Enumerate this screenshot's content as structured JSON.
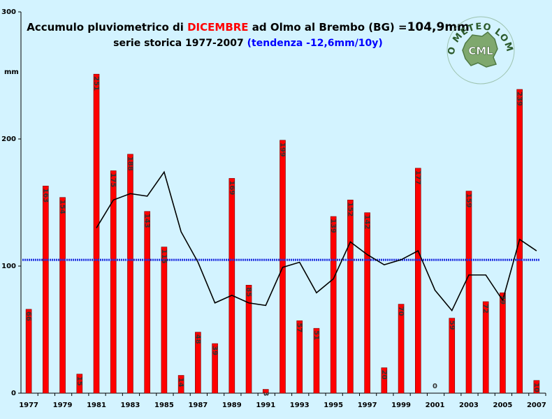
{
  "title": {
    "prefix": "Accumulo pluviometrico di ",
    "month": "DICEMBRE",
    "suffix": " ad Olmo al Brembo (BG) =",
    "total": "104,9mm"
  },
  "subtitle": {
    "main": "serie storica 1977-2007 ",
    "trend": "(tendenza -12,6mm/10y)"
  },
  "logo": {
    "arc_text": "CENTRO METEO LOMBARDO",
    "initials": "CML"
  },
  "colors": {
    "background": "#d3f3ff",
    "bar": "#ff0000",
    "bar_stroke": "#7a0000",
    "mean_line": "#1f2fe0",
    "moving_avg": "#000000",
    "month": "#ff0000",
    "trend": "#0000ff"
  },
  "chart_data": {
    "type": "bar",
    "ylabel": "mm",
    "ylim": [
      0,
      300
    ],
    "yticks": [
      0,
      100,
      200,
      300
    ],
    "x": [
      1977,
      1978,
      1979,
      1980,
      1981,
      1982,
      1983,
      1984,
      1985,
      1986,
      1987,
      1988,
      1989,
      1990,
      1991,
      1992,
      1993,
      1994,
      1995,
      1996,
      1997,
      1998,
      1999,
      2000,
      2001,
      2002,
      2003,
      2004,
      2005,
      2006,
      2007
    ],
    "xticks": [
      1977,
      1979,
      1981,
      1983,
      1985,
      1987,
      1989,
      1991,
      1993,
      1995,
      1997,
      1999,
      2001,
      2003,
      2005,
      2007
    ],
    "values": [
      66,
      163,
      154,
      15,
      251,
      175,
      188,
      143,
      115,
      14,
      48,
      39,
      169,
      85,
      3,
      199,
      57,
      51,
      139,
      152,
      142,
      20,
      70,
      177,
      0,
      59,
      159,
      72,
      79,
      239,
      10
    ],
    "mean": 104.9,
    "moving_average": {
      "start_year": 1981,
      "values": [
        130,
        152,
        157,
        155,
        174,
        127,
        103,
        71,
        77,
        71,
        69,
        99,
        103,
        79,
        90,
        119,
        109,
        101,
        105,
        112,
        81,
        65,
        93,
        93,
        73,
        121,
        112
      ]
    },
    "grid": false,
    "legend": "none"
  }
}
